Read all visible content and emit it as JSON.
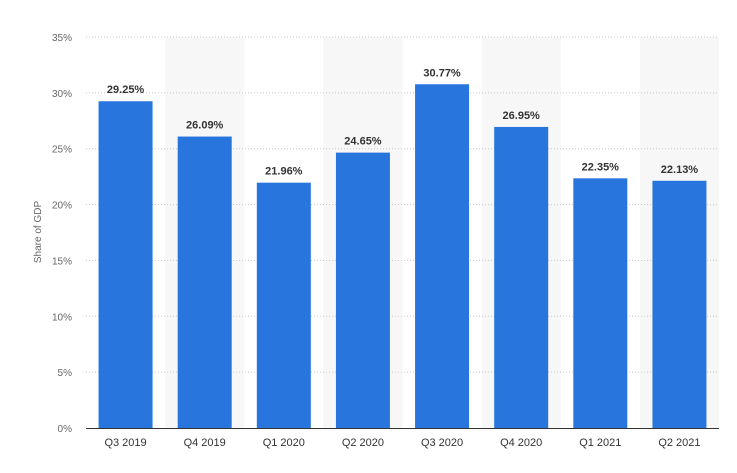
{
  "chart_data": {
    "type": "bar",
    "categories": [
      "Q3 2019",
      "Q4 2019",
      "Q1 2020",
      "Q2 2020",
      "Q3 2020",
      "Q4 2020",
      "Q1 2021",
      "Q2 2021"
    ],
    "values": [
      29.25,
      26.09,
      21.96,
      24.65,
      30.77,
      26.95,
      22.35,
      22.13
    ],
    "data_labels": [
      "29.25%",
      "26.09%",
      "21.96%",
      "24.65%",
      "30.77%",
      "26.95%",
      "22.35%",
      "22.13%"
    ],
    "ylabel": "Share of GDP",
    "xlabel": "",
    "ylim": [
      0,
      35
    ],
    "yticks": [
      0,
      5,
      10,
      15,
      20,
      25,
      30,
      35
    ],
    "ytick_labels": [
      "0%",
      "5%",
      "10%",
      "15%",
      "20%",
      "25%",
      "30%",
      "35%"
    ],
    "grid": true,
    "bar_color": "#2876dd",
    "band_color": "#f7f7f7"
  }
}
